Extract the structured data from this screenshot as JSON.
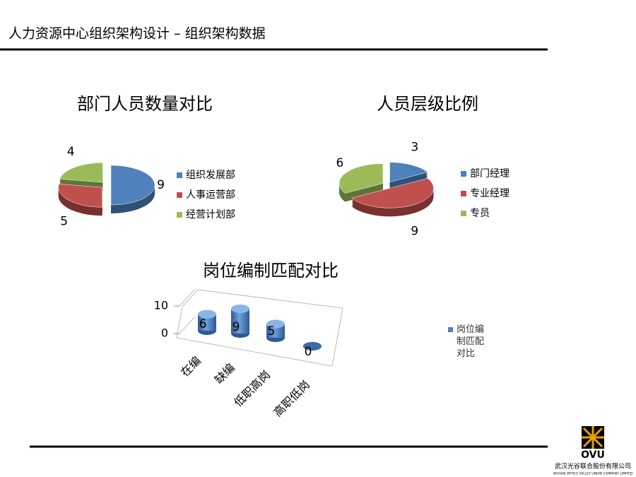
{
  "header": {
    "title": "人力资源中心组织架构设计 – 组织架构数据"
  },
  "logo": {
    "mark": "OVU",
    "company": "武汉光谷联合股份有限公司",
    "company_en": "WUHAN OPTICS VALLEY UNION COMPANY LIMITED"
  },
  "chart_data": [
    {
      "type": "pie",
      "title": "部门人员数量对比",
      "categories": [
        "组织发展部",
        "人事运营部",
        "经营计划部"
      ],
      "values": [
        9,
        5,
        4
      ],
      "colors": [
        "#4f81bd",
        "#c0504d",
        "#9bbb59"
      ],
      "legend": "right"
    },
    {
      "type": "pie",
      "title": "人员层级比例",
      "categories": [
        "部门经理",
        "专业经理",
        "专员"
      ],
      "values": [
        3,
        9,
        6
      ],
      "colors": [
        "#4f81bd",
        "#c0504d",
        "#9bbb59"
      ],
      "legend": "right"
    },
    {
      "type": "bar",
      "title": "岗位编制匹配对比",
      "categories": [
        "在编",
        "缺编",
        "低职高岗",
        "高职低岗"
      ],
      "series": [
        {
          "name": "岗位编制匹配对比",
          "color": "#4f81bd",
          "values": [
            6,
            9,
            5,
            0
          ]
        }
      ],
      "ylim": [
        0,
        10
      ],
      "yticks": [
        0,
        10
      ],
      "grid": true,
      "legend": "right"
    }
  ]
}
